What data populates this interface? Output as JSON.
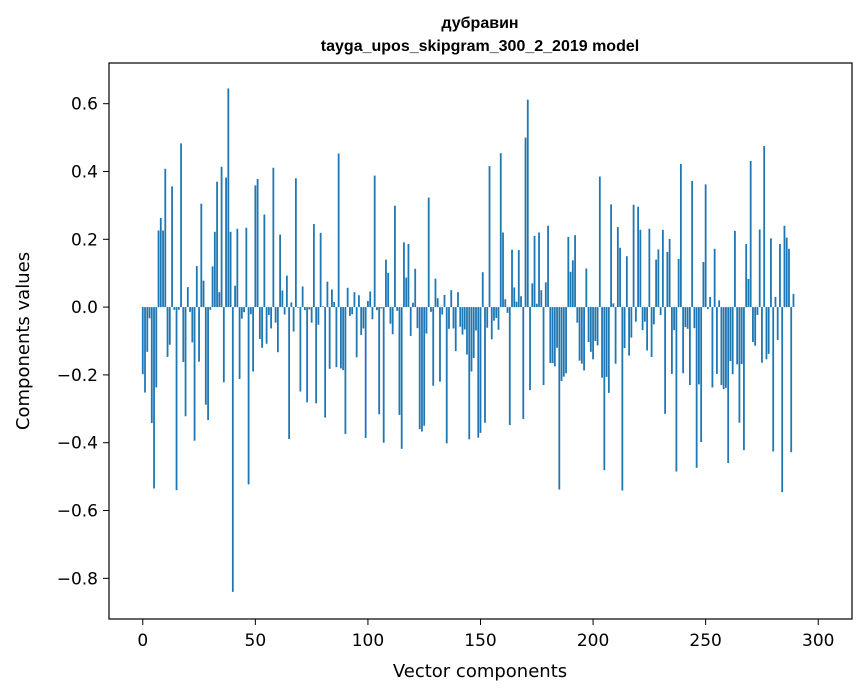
{
  "chart_data": {
    "type": "bar",
    "title_line1": "дубравин",
    "title_line2": "tayga_upos_skipgram_300_2_2019 model",
    "xlabel": "Vector components",
    "ylabel": "Components values",
    "xlim": [
      -15,
      315
    ],
    "ylim": [
      -0.92,
      0.72
    ],
    "xticks": [
      0,
      50,
      100,
      150,
      200,
      250,
      300
    ],
    "xtick_labels": [
      "0",
      "50",
      "100",
      "150",
      "200",
      "250",
      "300"
    ],
    "yticks": [
      -0.8,
      -0.6,
      -0.4,
      -0.2,
      0.0,
      0.2,
      0.4,
      0.6
    ],
    "ytick_labels": [
      "−0.8",
      "−0.6",
      "−0.4",
      "−0.2",
      "0.0",
      "0.2",
      "0.4",
      "0.6"
    ],
    "grid": false,
    "bar_color": "#1f77b4",
    "values": [
      -0.198,
      -0.252,
      -0.132,
      -0.033,
      -0.342,
      -0.535,
      -0.237,
      0.226,
      0.263,
      0.226,
      0.408,
      -0.147,
      -0.111,
      0.356,
      -0.008,
      -0.54,
      -0.008,
      0.483,
      -0.162,
      -0.322,
      0.059,
      -0.014,
      -0.104,
      -0.394,
      0.121,
      -0.161,
      0.305,
      0.078,
      -0.288,
      -0.333,
      -0.008,
      0.12,
      0.222,
      0.37,
      0.044,
      0.414,
      -0.222,
      0.382,
      0.645,
      0.222,
      -0.84,
      0.063,
      0.231,
      -0.212,
      -0.034,
      -0.015,
      0.234,
      -0.523,
      -0.021,
      -0.19,
      0.359,
      0.378,
      -0.094,
      -0.12,
      0.273,
      -0.108,
      -0.023,
      -0.063,
      0.411,
      -0.046,
      -0.133,
      0.214,
      0.049,
      -0.022,
      0.093,
      -0.389,
      0.014,
      -0.072,
      0.38,
      -0.002,
      -0.249,
      0.061,
      -0.009,
      -0.281,
      -0.007,
      -0.046,
      0.245,
      -0.284,
      -0.052,
      0.219,
      0.002,
      -0.326,
      0.075,
      -0.182,
      0.052,
      0.015,
      -0.177,
      0.453,
      -0.181,
      -0.186,
      -0.374,
      0.057,
      -0.026,
      -0.021,
      0.044,
      -0.148,
      0.035,
      -0.082,
      -0.063,
      -0.386,
      0.018,
      0.046,
      -0.036,
      0.388,
      -0.009,
      -0.316,
      -0.004,
      -0.4,
      0.14,
      0.101,
      -0.049,
      -0.08,
      0.299,
      -0.011,
      -0.318,
      -0.418,
      0.191,
      0.087,
      0.186,
      -0.085,
      0.013,
      0.113,
      -0.062,
      -0.36,
      -0.367,
      -0.35,
      -0.078,
      0.323,
      -0.014,
      -0.232,
      0.084,
      0.026,
      -0.22,
      -0.022,
      0.036,
      -0.402,
      -0.064,
      0.05,
      -0.063,
      -0.13,
      0.044,
      -0.058,
      -0.081,
      -0.066,
      -0.14,
      -0.39,
      -0.19,
      -0.15,
      -0.069,
      -0.385,
      -0.371,
      0.103,
      -0.341,
      -0.061,
      0.416,
      -0.095,
      -0.04,
      -0.032,
      -0.067,
      0.454,
      0.22,
      0.023,
      -0.017,
      -0.348,
      0.169,
      0.058,
      0.016,
      0.168,
      0.032,
      -0.33,
      0.5,
      0.612,
      -0.245,
      0.07,
      0.21,
      0.01,
      0.22,
      0.05,
      -0.23,
      0.073,
      0.24,
      -0.165,
      -0.165,
      -0.175,
      -0.12,
      -0.538,
      -0.218,
      -0.205,
      -0.195,
      0.207,
      0.104,
      0.138,
      0.212,
      -0.046,
      -0.158,
      -0.167,
      -0.187,
      0.114,
      -0.103,
      -0.132,
      -0.154,
      -0.1,
      -0.113,
      0.385,
      -0.208,
      -0.481,
      -0.206,
      -0.253,
      0.303,
      0.011,
      -0.167,
      0.236,
      0.175,
      -0.541,
      -0.121,
      0.15,
      -0.143,
      -0.09,
      0.302,
      -0.043,
      0.296,
      0.228,
      -0.068,
      -0.043,
      -0.128,
      0.231,
      -0.147,
      -0.051,
      0.14,
      0.17,
      -0.023,
      0.228,
      -0.315,
      0.163,
      0.201,
      -0.197,
      -0.068,
      -0.485,
      0.142,
      0.422,
      -0.195,
      -0.059,
      -0.064,
      -0.23,
      0.372,
      -0.062,
      -0.474,
      -0.228,
      -0.398,
      0.133,
      0.362,
      -0.006,
      0.03,
      -0.237,
      0.172,
      -0.197,
      0.02,
      -0.23,
      -0.242,
      -0.238,
      -0.46,
      -0.159,
      -0.198,
      0.225,
      -0.169,
      -0.341,
      -0.168,
      -0.422,
      0.186,
      0.083,
      0.431,
      -0.103,
      -0.114,
      -0.023,
      0.229,
      -0.164,
      0.475,
      -0.154,
      -0.138,
      0.203,
      -0.426,
      0.03,
      -0.097,
      0.186,
      -0.546,
      0.24,
      0.205,
      0.172,
      -0.428,
      0.039
    ]
  }
}
